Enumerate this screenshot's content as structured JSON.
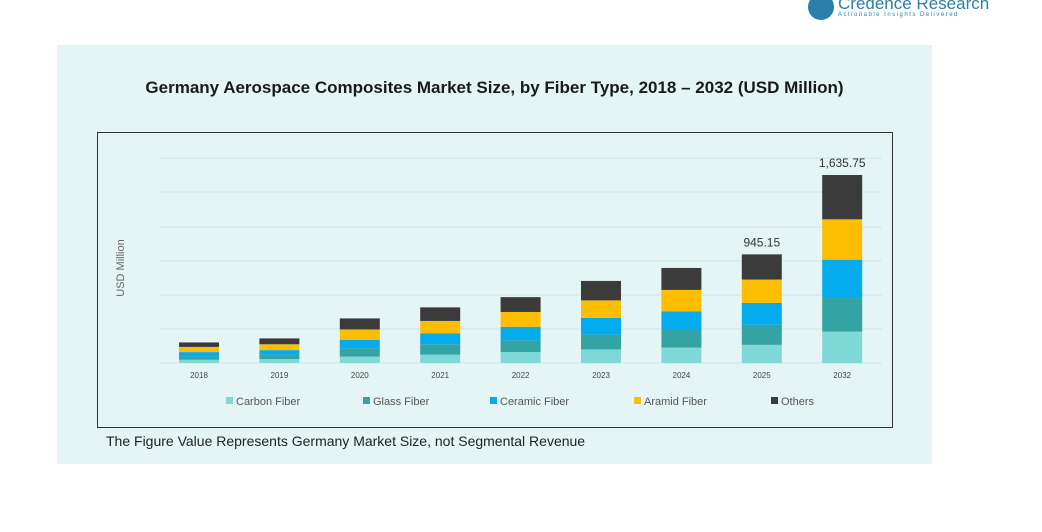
{
  "brand": {
    "name": "Credence Research",
    "tagline": "Actionable Insights Delivered"
  },
  "footnote": "The Figure Value Represents Germany Market Size, not Segmental Revenue",
  "chart_data": {
    "type": "bar",
    "stacked": true,
    "title": "Germany Aerospace Composites Market Size, by Fiber Type, 2018 – 2032 (USD Million)",
    "xlabel": "",
    "ylabel": "USD Million",
    "categories": [
      "2018",
      "2019",
      "2020",
      "2021",
      "2022",
      "2023",
      "2024",
      "2025",
      "2032"
    ],
    "series": [
      {
        "name": "Carbon Fiber",
        "color": "#7dd8d6",
        "values": [
          28,
          34,
          56,
          73,
          96,
          118,
          135,
          158,
          274
        ]
      },
      {
        "name": "Glass Fiber",
        "color": "#33a3a3",
        "values": [
          28,
          39,
          73,
          90,
          101,
          129,
          152,
          174,
          291
        ]
      },
      {
        "name": "Ceramic Fiber",
        "color": "#05aced",
        "values": [
          39,
          39,
          73,
          96,
          118,
          146,
          163,
          191,
          334
        ]
      },
      {
        "name": "Aramid Fiber",
        "color": "#fdbd00",
        "values": [
          45,
          51,
          90,
          107,
          129,
          152,
          186,
          203,
          351
        ]
      },
      {
        "name": "Others",
        "color": "#3b3b3b",
        "values": [
          39,
          51,
          96,
          118,
          129,
          169,
          191,
          219.15,
          385.75
        ]
      }
    ],
    "data_labels": {
      "2025": "945.15",
      "2032": "1,635.75"
    },
    "grid": true,
    "legend": "bottom"
  }
}
